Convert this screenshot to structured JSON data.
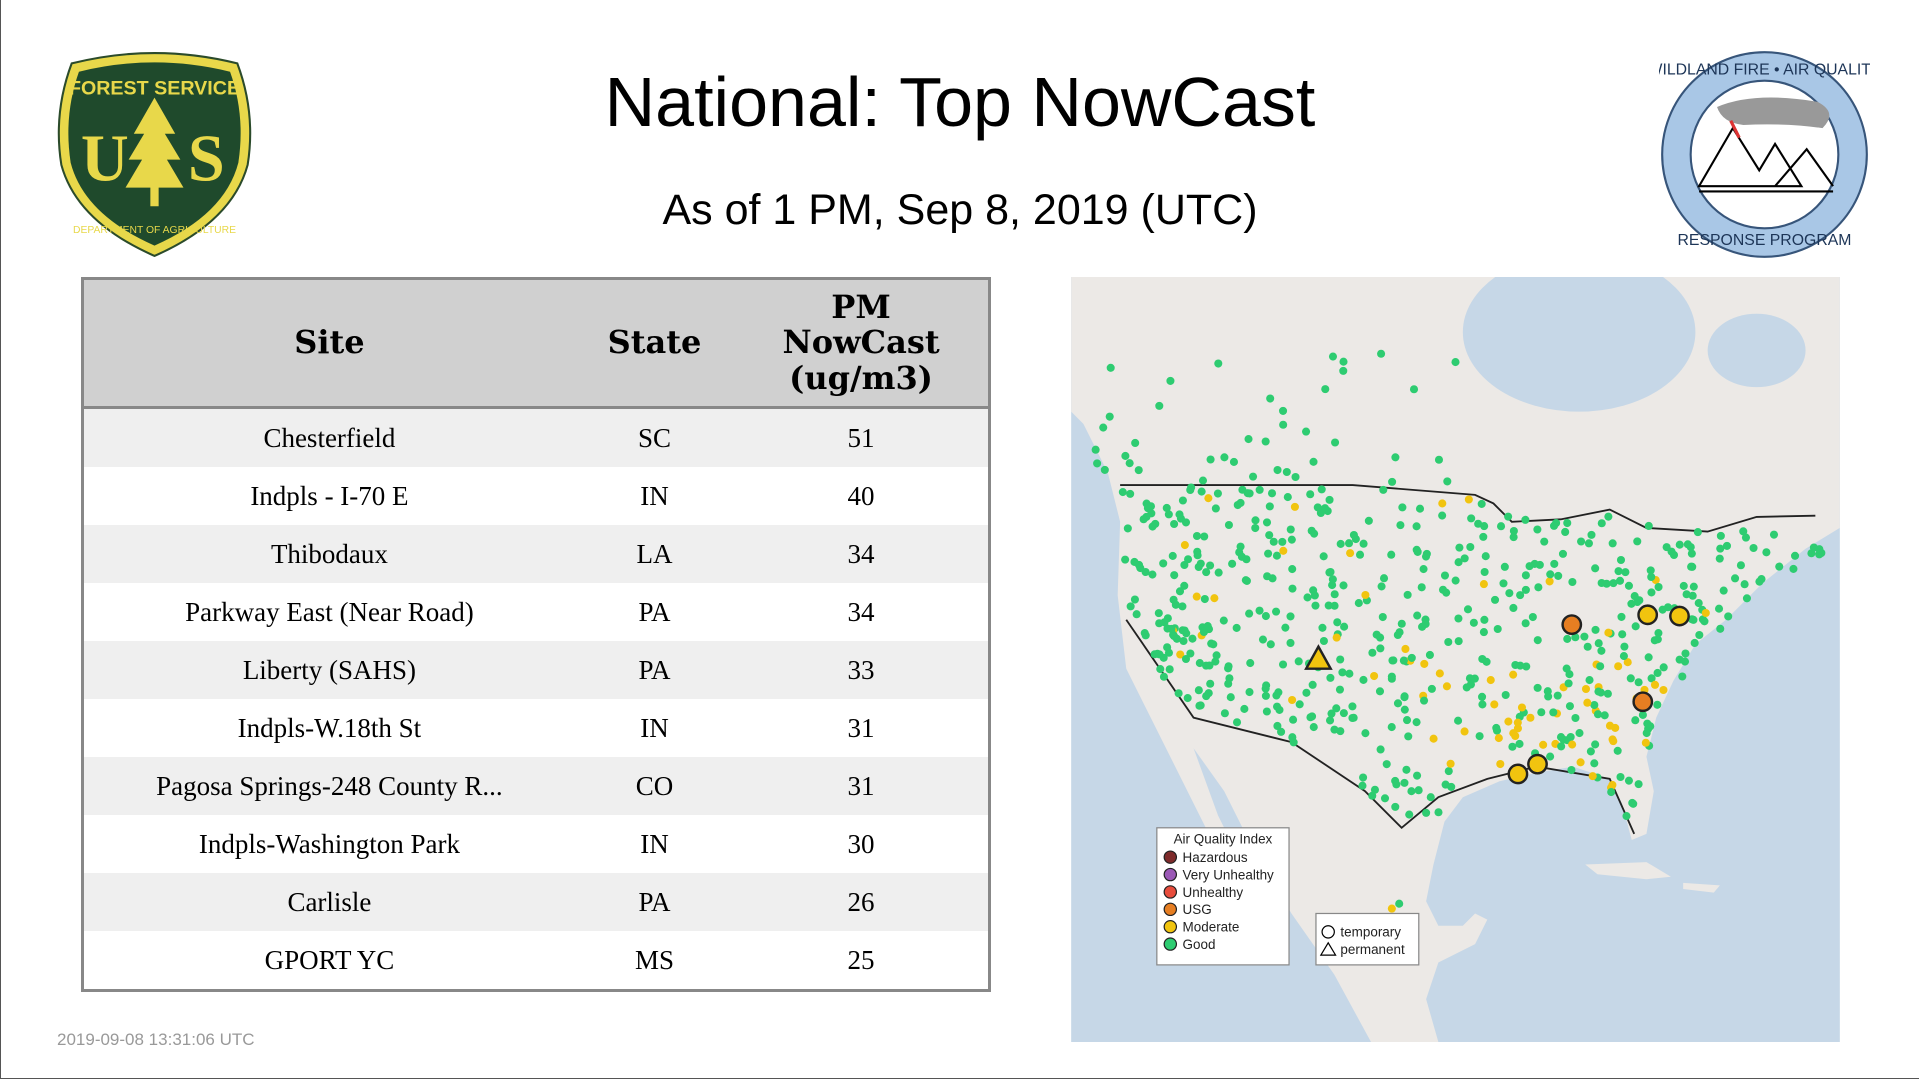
{
  "header": {
    "title": "National: Top NowCast",
    "subtitle": "As of  1 PM, Sep  8, 2019 (UTC)"
  },
  "logos": {
    "left": {
      "name": "forest-service-shield",
      "text": [
        "FOREST SERVICE",
        "U",
        "S",
        "DEPARTMENT OF AGRICULTURE"
      ]
    },
    "right": {
      "name": "wildland-fire-air-quality-logo",
      "text": [
        "WILDLAND FIRE",
        "AIR QUALITY",
        "RESPONSE PROGRAM"
      ]
    }
  },
  "table": {
    "headers": {
      "site": "Site",
      "state": "State",
      "pm": [
        "PM",
        "NowCast",
        "(ug/m3)"
      ]
    },
    "rows": [
      {
        "site": "Chesterfield",
        "state": "SC",
        "value": "51"
      },
      {
        "site": "Indpls - I-70 E",
        "state": "IN",
        "value": "40"
      },
      {
        "site": "Thibodaux",
        "state": "LA",
        "value": "34"
      },
      {
        "site": "Parkway East (Near Road)",
        "state": "PA",
        "value": "34"
      },
      {
        "site": "Liberty (SAHS)",
        "state": "PA",
        "value": "33"
      },
      {
        "site": "Indpls-W.18th St",
        "state": "IN",
        "value": "31"
      },
      {
        "site": "Pagosa Springs-248 County R...",
        "state": "CO",
        "value": "31"
      },
      {
        "site": "Indpls-Washington Park",
        "state": "IN",
        "value": "30"
      },
      {
        "site": "Carlisle",
        "state": "PA",
        "value": "26"
      },
      {
        "site": "GPORT YC",
        "state": "MS",
        "value": "25"
      }
    ]
  },
  "map": {
    "colors": {
      "ocean": "#c6d7e7",
      "land": "#ece9e6",
      "Hazardous": "#7e2b2b",
      "Very Unhealthy": "#9b59b6",
      "Unhealthy": "#e74c3c",
      "USG": "#e67e22",
      "Moderate": "#f1c40f",
      "Good": "#2ecc71"
    },
    "legend": {
      "title": "Air Quality Index",
      "items": [
        "Hazardous",
        "Very Unhealthy",
        "Unhealthy",
        "USG",
        "Moderate",
        "Good"
      ]
    },
    "shape_legend": {
      "items": [
        "temporary",
        "permanent"
      ]
    }
  },
  "timestamp": "2019-09-08 13:31:06 UTC"
}
